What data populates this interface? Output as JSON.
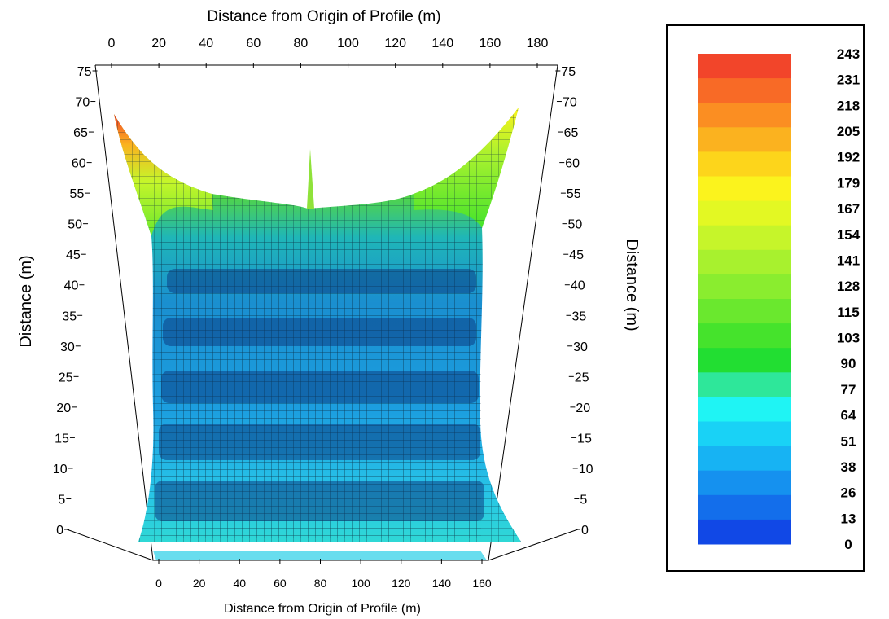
{
  "chart_data": {
    "type": "surface",
    "title": "",
    "top_axis_label": "Distance from Origin of Profile (m)",
    "bottom_axis_label": "Distance from Origin of Profile (m)",
    "left_axis_label": "Distance (m)",
    "right_axis_label": "Distance (m)",
    "top_ticks": [
      "0",
      "20",
      "40",
      "60",
      "80",
      "100",
      "120",
      "140",
      "160",
      "180"
    ],
    "bottom_ticks": [
      "0",
      "20",
      "40",
      "60",
      "80",
      "100",
      "120",
      "140",
      "160"
    ],
    "vertical_ticks": [
      "0",
      "5",
      "10",
      "15",
      "20",
      "25",
      "30",
      "35",
      "40",
      "45",
      "50",
      "55",
      "60",
      "65",
      "70",
      "75"
    ],
    "xlim": [
      0,
      180
    ],
    "ylim": [
      0,
      75
    ],
    "grid": false,
    "legend_position": "right",
    "colorscale": [
      {
        "value": "243",
        "color": "#f2452a"
      },
      {
        "value": "231",
        "color": "#f86a26"
      },
      {
        "value": "218",
        "color": "#fb8e22"
      },
      {
        "value": "205",
        "color": "#fbb21f"
      },
      {
        "value": "192",
        "color": "#fdd51b"
      },
      {
        "value": "179",
        "color": "#fbf31d"
      },
      {
        "value": "167",
        "color": "#e3f823"
      },
      {
        "value": "154",
        "color": "#c6f52a"
      },
      {
        "value": "141",
        "color": "#a8f12e"
      },
      {
        "value": "128",
        "color": "#8aed2f"
      },
      {
        "value": "115",
        "color": "#6ae82e"
      },
      {
        "value": "103",
        "color": "#45e32c"
      },
      {
        "value": "90",
        "color": "#22de32"
      },
      {
        "value": "77",
        "color": "#2ee79a"
      },
      {
        "value": "64",
        "color": "#1ff4f4"
      },
      {
        "value": "51",
        "color": "#19d2f6"
      },
      {
        "value": "38",
        "color": "#17b3f3"
      },
      {
        "value": "26",
        "color": "#1591ef"
      },
      {
        "value": "13",
        "color": "#136eeb"
      },
      {
        "value": "0",
        "color": "#1148e6"
      }
    ]
  }
}
